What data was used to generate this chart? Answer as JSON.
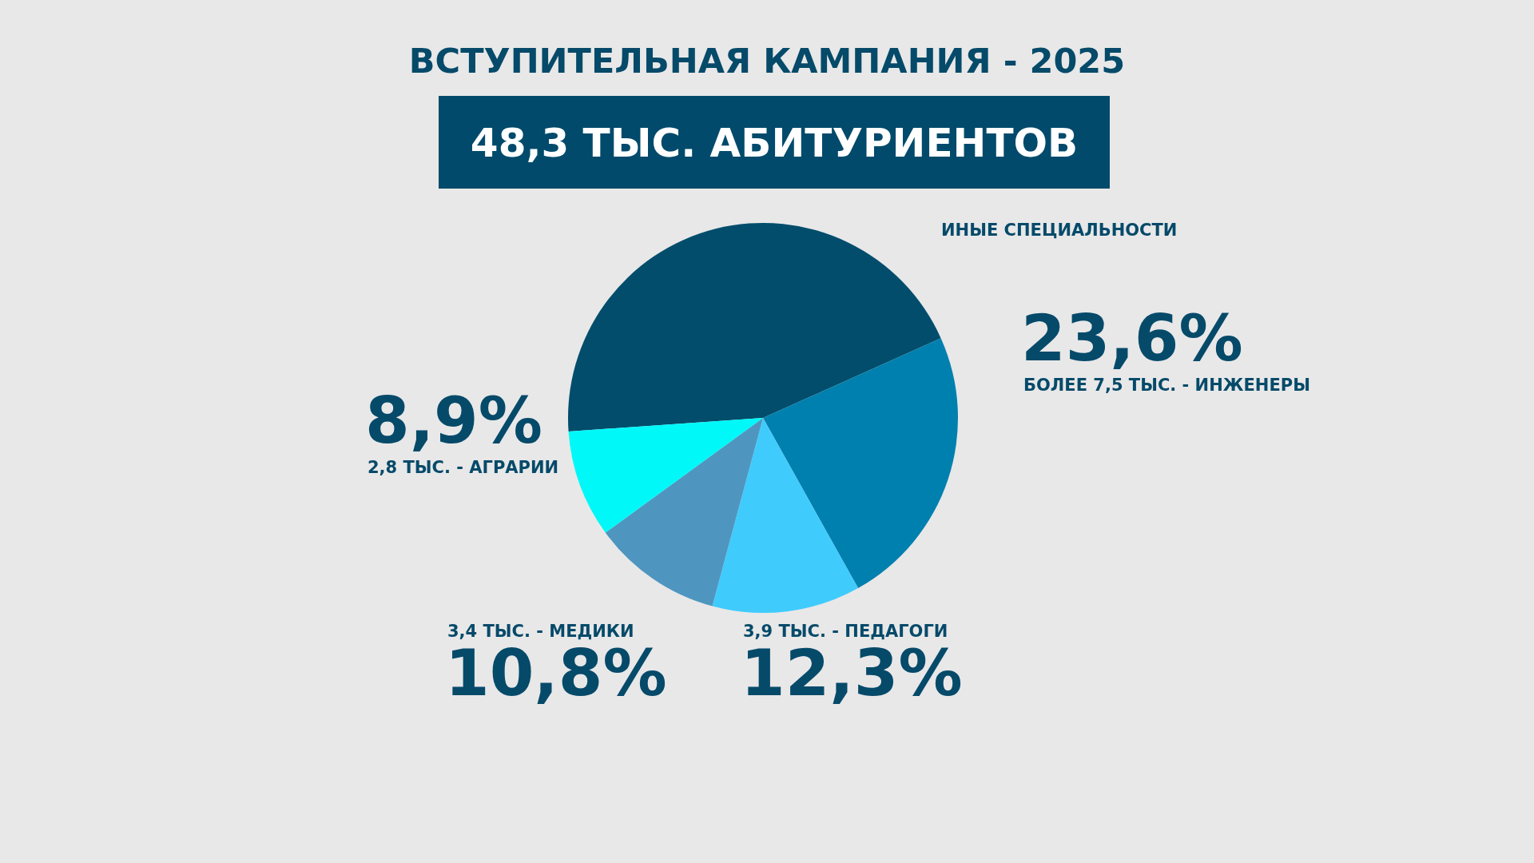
{
  "chart_data": {
    "type": "pie",
    "title": "ВСТУПИТЕЛЬНАЯ КАМПАНИЯ - 2025",
    "subtitle": "48,3 ТЫС. АБИТУРИЕНТОВ",
    "categories": [
      "ИНЫЕ СПЕЦИАЛЬНОСТИ",
      "БОЛЕЕ 7,5 ТЫС. - ИНЖЕНЕРЫ",
      "3,9 ТЫС. - ПЕДАГОГИ",
      "3,4 ТЫС. - МЕДИКИ",
      "2,8 ТЫС. - АГРАРИИ"
    ],
    "values": [
      44.4,
      23.6,
      12.3,
      10.8,
      8.9
    ],
    "colors": [
      "#024d6c",
      "#0080ae",
      "#40cbfd",
      "#4e96c0",
      "#00f8f8"
    ],
    "value_labels": [
      null,
      "23,6%",
      "12,3%",
      "10,8%",
      "8,9%"
    ]
  }
}
